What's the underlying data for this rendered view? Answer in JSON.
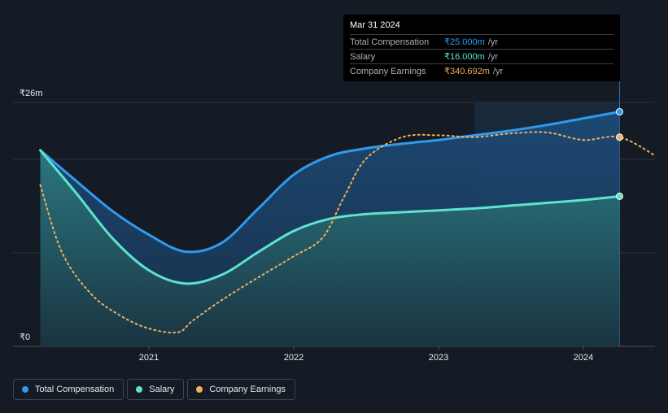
{
  "tooltip": {
    "date": "Mar 31 2024",
    "rows": [
      {
        "label": "Total Compensation",
        "value": "₹25.000m",
        "unit": "/yr"
      },
      {
        "label": "Salary",
        "value": "₹16.000m",
        "unit": "/yr"
      },
      {
        "label": "Company Earnings",
        "value": "₹340.692m",
        "unit": "/yr"
      }
    ]
  },
  "legend": [
    {
      "label": "Total Compensation",
      "color": "#2f9bef"
    },
    {
      "label": "Salary",
      "color": "#5ee3cf"
    },
    {
      "label": "Company Earnings",
      "color": "#f0b060"
    }
  ],
  "chart_data": {
    "type": "area",
    "title": "",
    "xlabel": "",
    "ylabel": "",
    "y_top_label": "₹26m",
    "y_bottom_label": "₹0",
    "ylim": [
      0,
      26
    ],
    "xlim": [
      2020.25,
      2024.5
    ],
    "x_ticks": [
      {
        "value": 2021,
        "label": "2021"
      },
      {
        "value": 2022,
        "label": "2022"
      },
      {
        "value": 2023,
        "label": "2023"
      },
      {
        "value": 2024,
        "label": "2024"
      }
    ],
    "highlight_range": [
      2023.25,
      2024.25
    ],
    "series": [
      {
        "name": "Total Compensation",
        "color": "#2f9bef",
        "x": [
          2020.25,
          2020.5,
          2020.75,
          2021.0,
          2021.25,
          2021.5,
          2021.75,
          2022.0,
          2022.25,
          2022.5,
          2022.75,
          2023.0,
          2023.25,
          2023.5,
          2023.75,
          2024.0,
          2024.25
        ],
        "values": [
          20.9,
          17.6,
          14.4,
          11.9,
          10.1,
          11.0,
          14.6,
          18.3,
          20.3,
          21.1,
          21.6,
          22.0,
          22.5,
          23.0,
          23.6,
          24.3,
          25.0
        ]
      },
      {
        "name": "Salary",
        "color": "#5ee3cf",
        "x": [
          2020.25,
          2020.5,
          2020.75,
          2021.0,
          2021.25,
          2021.5,
          2021.75,
          2022.0,
          2022.25,
          2022.5,
          2022.75,
          2023.0,
          2023.25,
          2023.5,
          2023.75,
          2024.0,
          2024.25
        ],
        "values": [
          20.9,
          16.3,
          11.5,
          8.1,
          6.7,
          7.6,
          10.0,
          12.3,
          13.6,
          14.1,
          14.3,
          14.5,
          14.7,
          15.0,
          15.3,
          15.6,
          16.0
        ]
      },
      {
        "name": "Company Earnings",
        "color": "#f0b060",
        "x": [
          2020.25,
          2020.4,
          2020.6,
          2020.8,
          2021.0,
          2021.2,
          2021.3,
          2021.5,
          2021.75,
          2022.0,
          2022.2,
          2022.35,
          2022.5,
          2022.75,
          2023.0,
          2023.25,
          2023.5,
          2023.75,
          2024.0,
          2024.25,
          2024.5
        ],
        "values": [
          17.2,
          10.0,
          5.6,
          3.3,
          1.9,
          1.5,
          2.7,
          4.9,
          7.3,
          9.6,
          11.6,
          16.0,
          20.0,
          22.3,
          22.5,
          22.3,
          22.7,
          22.8,
          22.0,
          22.3,
          20.3
        ]
      }
    ],
    "current_markers": [
      {
        "series": "Total Compensation",
        "x": 2024.25,
        "value": 25.0
      },
      {
        "series": "Salary",
        "x": 2024.25,
        "value": 16.0
      },
      {
        "series": "Company Earnings",
        "x": 2024.25,
        "value": 22.3
      }
    ]
  }
}
